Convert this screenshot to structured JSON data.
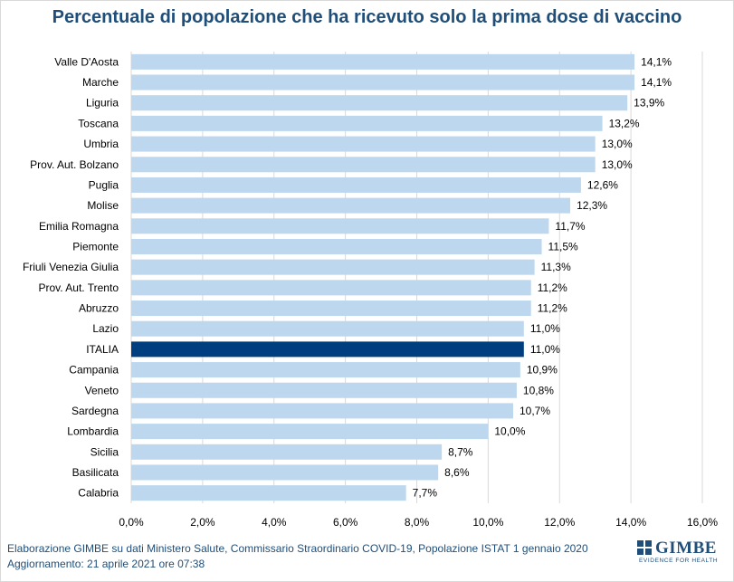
{
  "chart_data": {
    "type": "bar",
    "orientation": "horizontal",
    "title": "Percentuale di popolazione che ha ricevuto solo la prima dose di vaccino",
    "categories": [
      "Valle D'Aosta",
      "Marche",
      "Liguria",
      "Toscana",
      "Umbria",
      "Prov. Aut. Bolzano",
      "Puglia",
      "Molise",
      "Emilia Romagna",
      "Piemonte",
      "Friuli Venezia Giulia",
      "Prov. Aut. Trento",
      "Abruzzo",
      "Lazio",
      "ITALIA",
      "Campania",
      "Veneto",
      "Sardegna",
      "Lombardia",
      "Sicilia",
      "Basilicata",
      "Calabria"
    ],
    "values": [
      14.1,
      14.1,
      13.9,
      13.2,
      13.0,
      13.0,
      12.6,
      12.3,
      11.7,
      11.5,
      11.3,
      11.2,
      11.2,
      11.0,
      11.0,
      10.9,
      10.8,
      10.7,
      10.0,
      8.7,
      8.6,
      7.7
    ],
    "value_labels": [
      "14,1%",
      "14,1%",
      "13,9%",
      "13,2%",
      "13,0%",
      "13,0%",
      "12,6%",
      "12,3%",
      "11,7%",
      "11,5%",
      "11,3%",
      "11,2%",
      "11,2%",
      "11,0%",
      "11,0%",
      "10,9%",
      "10,8%",
      "10,7%",
      "10,0%",
      "8,7%",
      "8,6%",
      "7,7%"
    ],
    "highlight": "ITALIA",
    "xlim": [
      0,
      16
    ],
    "x_ticks": [
      "0,0%",
      "2,0%",
      "4,0%",
      "6,0%",
      "8,0%",
      "10,0%",
      "12,0%",
      "14,0%",
      "16,0%"
    ],
    "grid": true,
    "colors": {
      "bar": "#bdd7ee",
      "highlight": "#003f7f",
      "grid": "#d9d9d9",
      "title": "#1f4e79"
    }
  },
  "footer": {
    "line1": "Elaborazione GIMBE su dati Ministero Salute, Commissario  Straordinario COVID-19, Popolazione  ISTAT 1 gennaio 2020",
    "line2": "Aggiornamento: 21 aprile 2021 ore 07:38"
  },
  "logo": {
    "name": "GIMBE",
    "tagline": "EVIDENCE FOR HEALTH"
  }
}
